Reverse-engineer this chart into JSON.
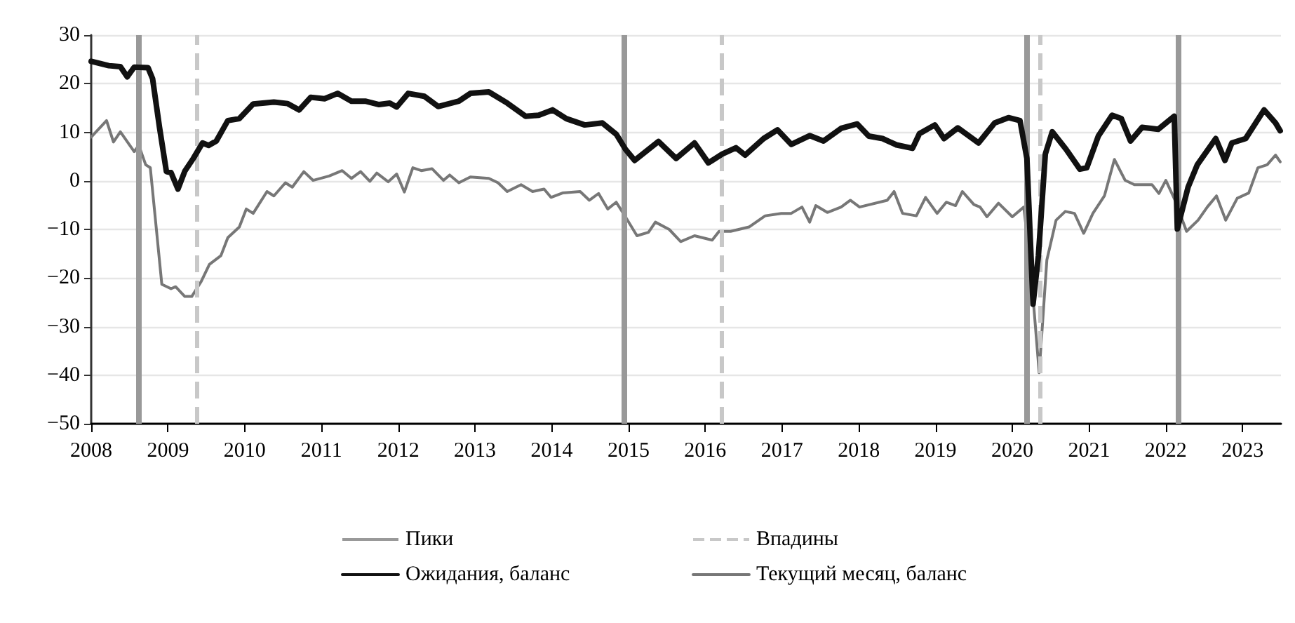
{
  "chart_data": {
    "type": "line",
    "xlim": [
      2008,
      2023.5
    ],
    "xticks": [
      2008,
      2009,
      2010,
      2011,
      2012,
      2013,
      2014,
      2015,
      2016,
      2017,
      2018,
      2019,
      2020,
      2021,
      2022,
      2023
    ],
    "ylim": [
      -50,
      30
    ],
    "yticks": [
      -50,
      -40,
      -30,
      -20,
      -10,
      0,
      10,
      20,
      30
    ],
    "grid": "y",
    "legend": "bottom",
    "line_style": "solid",
    "marker": "none",
    "series": [
      {
        "name": "Ожидания, баланс",
        "color": "#111111",
        "x": [
          2008.0,
          2008.23,
          2008.38,
          2008.47,
          2008.56,
          2008.74,
          2008.8,
          2008.89,
          2008.98,
          2009.04,
          2009.13,
          2009.22,
          2009.33,
          2009.45,
          2009.53,
          2009.63,
          2009.78,
          2009.93,
          2010.11,
          2010.38,
          2010.56,
          2010.71,
          2010.86,
          2011.04,
          2011.21,
          2011.39,
          2011.57,
          2011.75,
          2011.89,
          2011.98,
          2012.13,
          2012.34,
          2012.52,
          2012.79,
          2012.94,
          2013.18,
          2013.42,
          2013.66,
          2013.83,
          2014.01,
          2014.19,
          2014.43,
          2014.66,
          2014.84,
          2014.96,
          2015.08,
          2015.39,
          2015.62,
          2015.86,
          2016.04,
          2016.22,
          2016.4,
          2016.52,
          2016.76,
          2016.94,
          2017.12,
          2017.36,
          2017.54,
          2017.77,
          2017.98,
          2018.13,
          2018.31,
          2018.49,
          2018.7,
          2018.79,
          2018.99,
          2019.11,
          2019.29,
          2019.56,
          2019.77,
          2019.95,
          2020.1,
          2020.19,
          2020.27,
          2020.34,
          2020.43,
          2020.52,
          2020.7,
          2020.88,
          2020.97,
          2021.12,
          2021.3,
          2021.42,
          2021.54,
          2021.69,
          2021.9,
          2022.11,
          2022.15,
          2022.29,
          2022.41,
          2022.65,
          2022.77,
          2022.86,
          2023.04,
          2023.28,
          2023.43,
          2023.49
        ],
        "values": [
          24.6,
          23.7,
          23.5,
          21.4,
          23.4,
          23.3,
          21,
          11,
          1.9,
          1.7,
          -1.7,
          2,
          4.6,
          7.8,
          7.3,
          8.2,
          12.4,
          12.8,
          15.8,
          16.2,
          15.9,
          14.6,
          17.2,
          16.9,
          18,
          16.4,
          16.4,
          15.7,
          16,
          15.2,
          18,
          17.4,
          15.3,
          16.4,
          18,
          18.3,
          16,
          13.3,
          13.5,
          14.6,
          12.8,
          11.5,
          11.9,
          9.6,
          6.5,
          4.2,
          8.1,
          4.6,
          7.8,
          3.7,
          5.5,
          6.8,
          5.3,
          8.7,
          10.5,
          7.5,
          9.3,
          8.2,
          10.8,
          11.7,
          9.2,
          8.7,
          7.4,
          6.7,
          9.7,
          11.5,
          8.7,
          10.9,
          7.8,
          11.9,
          13,
          12.4,
          4.6,
          -25.4,
          -15.4,
          5.5,
          10.1,
          6.5,
          2.4,
          2.7,
          9.2,
          13.5,
          12.8,
          8.2,
          11,
          10.6,
          13.3,
          -9.9,
          -1.3,
          3.3,
          8.7,
          4.2,
          7.8,
          8.7,
          14.6,
          11.9,
          10.3
        ]
      },
      {
        "name": "Текущий месяц, баланс",
        "color": "#777777",
        "x": [
          2008.0,
          2008.2,
          2008.29,
          2008.38,
          2008.56,
          2008.62,
          2008.71,
          2008.77,
          2008.92,
          2009.04,
          2009.1,
          2009.22,
          2009.31,
          2009.43,
          2009.54,
          2009.69,
          2009.78,
          2009.93,
          2010.02,
          2010.11,
          2010.29,
          2010.38,
          2010.53,
          2010.62,
          2010.77,
          2010.89,
          2011.1,
          2011.27,
          2011.39,
          2011.51,
          2011.63,
          2011.72,
          2011.87,
          2011.98,
          2012.08,
          2012.19,
          2012.3,
          2012.44,
          2012.59,
          2012.67,
          2012.79,
          2012.94,
          2013.18,
          2013.3,
          2013.42,
          2013.6,
          2013.75,
          2013.9,
          2013.99,
          2014.14,
          2014.37,
          2014.49,
          2014.61,
          2014.73,
          2014.84,
          2014.96,
          2015.11,
          2015.26,
          2015.35,
          2015.53,
          2015.68,
          2015.86,
          2016.09,
          2016.18,
          2016.33,
          2016.57,
          2016.78,
          2016.99,
          2017.12,
          2017.26,
          2017.36,
          2017.44,
          2017.59,
          2017.77,
          2017.89,
          2018.01,
          2018.37,
          2018.46,
          2018.57,
          2018.75,
          2018.87,
          2019.02,
          2019.14,
          2019.26,
          2019.35,
          2019.5,
          2019.58,
          2019.67,
          2019.82,
          2020.0,
          2020.15,
          2020.24,
          2020.35,
          2020.45,
          2020.57,
          2020.69,
          2020.81,
          2020.93,
          2021.05,
          2021.2,
          2021.33,
          2021.47,
          2021.59,
          2021.82,
          2021.91,
          2022.0,
          2022.12,
          2022.27,
          2022.42,
          2022.54,
          2022.66,
          2022.78,
          2022.93,
          2023.08,
          2023.2,
          2023.32,
          2023.43,
          2023.49
        ],
        "values": [
          9,
          12.4,
          8,
          10.1,
          6,
          7.3,
          3.3,
          2.7,
          -21.3,
          -22.2,
          -21.8,
          -23.8,
          -23.8,
          -20.8,
          -17.2,
          -15.4,
          -11.7,
          -9.5,
          -5.8,
          -6.7,
          -2.2,
          -3.1,
          -0.4,
          -1.3,
          1.9,
          0.1,
          1,
          2.1,
          0.5,
          1.9,
          -0.1,
          1.6,
          -0.2,
          1.4,
          -2.3,
          2.7,
          2.1,
          2.5,
          0.1,
          1.2,
          -0.4,
          0.8,
          0.5,
          -0.4,
          -2.2,
          -0.8,
          -2.2,
          -1.7,
          -3.4,
          -2.5,
          -2.2,
          -4,
          -2.6,
          -5.8,
          -4.4,
          -7.4,
          -11.3,
          -10.6,
          -8.5,
          -10,
          -12.5,
          -11.3,
          -12.2,
          -10.4,
          -10.4,
          -9.5,
          -7.2,
          -6.7,
          -6.7,
          -5.4,
          -8.5,
          -5.1,
          -6.5,
          -5.4,
          -4,
          -5.4,
          -4,
          -2.2,
          -6.7,
          -7.2,
          -3.4,
          -6.7,
          -4.4,
          -5.1,
          -2.2,
          -4.9,
          -5.4,
          -7.4,
          -4.6,
          -7.4,
          -5.4,
          -18.1,
          -39.5,
          -16.3,
          -8.1,
          -6.3,
          -6.7,
          -10.8,
          -6.7,
          -3.1,
          4.4,
          0.1,
          -0.8,
          -0.8,
          -2.6,
          0.1,
          -4,
          -10.4,
          -8.1,
          -5.4,
          -3.1,
          -8.1,
          -3.6,
          -2.5,
          2.7,
          3.3,
          5.3,
          3.9
        ]
      }
    ],
    "ref_lines": [
      {
        "axis": "x",
        "value": 2008.61,
        "label": "Пики",
        "color": "#999999",
        "line_style": "solid"
      },
      {
        "axis": "x",
        "value": 2014.94,
        "color": "#999999",
        "line_style": "solid"
      },
      {
        "axis": "x",
        "value": 2020.18,
        "color": "#999999",
        "line_style": "solid"
      },
      {
        "axis": "x",
        "value": 2022.17,
        "color": "#999999",
        "line_style": "solid"
      },
      {
        "axis": "x",
        "value": 2009.38,
        "label": "Впадины",
        "color": "#c8c8c8",
        "line_style": "dashed"
      },
      {
        "axis": "x",
        "value": 2016.21,
        "color": "#c8c8c8",
        "line_style": "dashed"
      },
      {
        "axis": "x",
        "value": 2020.36,
        "color": "#c8c8c8",
        "line_style": "dashed"
      }
    ]
  }
}
